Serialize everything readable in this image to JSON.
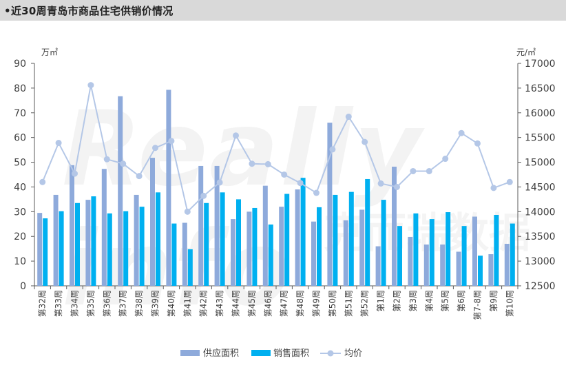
{
  "header": {
    "title": "•近30周青岛市商品住宅供销价情况"
  },
  "watermark": {
    "text": "Really info",
    "text_cn": "克而瑞数据"
  },
  "chart_data": {
    "type": "bar",
    "title": "近30周青岛市商品住宅供销价情况",
    "categories": [
      "第32周",
      "第33周",
      "第34周",
      "第35周",
      "第36周",
      "第37周",
      "第38周",
      "第39周",
      "第40周",
      "第41周",
      "第42周",
      "第43周",
      "第44周",
      "第45周",
      "第46周",
      "第47周",
      "第48周",
      "第49周",
      "第50周",
      "第51周",
      "第52周",
      "第1周",
      "第2周",
      "第3周",
      "第4周",
      "第5周",
      "第6周",
      "第7-8周",
      "第9周",
      "第10周"
    ],
    "y_left": {
      "unit": "万㎡",
      "ylim": [
        0,
        90
      ],
      "ticks": [
        0,
        10,
        20,
        30,
        40,
        50,
        60,
        70,
        80,
        90
      ]
    },
    "y_right": {
      "unit": "元/㎡",
      "ylim": [
        12500,
        17000
      ],
      "ticks": [
        12500,
        13000,
        13500,
        14000,
        14500,
        15000,
        15500,
        16000,
        16500,
        17000
      ]
    },
    "series": [
      {
        "name": "供应面积",
        "type": "bar",
        "axis": "left",
        "color": "#8eaadb",
        "values": [
          29.5,
          36.8,
          48.8,
          34.8,
          47.3,
          76.7,
          36.8,
          51.8,
          79.3,
          25.5,
          48.5,
          48.5,
          27,
          30,
          40.5,
          32,
          39,
          26,
          66,
          26.5,
          30.8,
          16,
          48.2,
          19.8,
          16.7,
          16.7,
          13.8,
          28,
          12.8,
          17
        ]
      },
      {
        "name": "销售面积",
        "type": "bar",
        "axis": "left",
        "color": "#00b0f0",
        "values": [
          27.3,
          30.2,
          33.5,
          36.2,
          29.3,
          30.2,
          32,
          37.8,
          25.2,
          14.8,
          33.5,
          37.8,
          35,
          31.5,
          24.8,
          37.2,
          43.7,
          31.8,
          36.8,
          38,
          43.2,
          34.8,
          24.2,
          29.3,
          27,
          29.8,
          24.2,
          12.2,
          28.7,
          25.2
        ]
      },
      {
        "name": "均价",
        "type": "line",
        "axis": "right",
        "color": "#b4c7e7",
        "values": [
          14600,
          15390,
          14770,
          16560,
          15060,
          14970,
          14720,
          15290,
          15430,
          14000,
          14320,
          14590,
          15540,
          14970,
          14960,
          14750,
          14580,
          14380,
          15260,
          15920,
          15410,
          14570,
          14500,
          14820,
          14820,
          15070,
          15590,
          15380,
          14480,
          14600
        ]
      }
    ],
    "legend": {
      "position": "bottom",
      "labels": [
        "供应面积",
        "销售面积",
        "均价"
      ]
    },
    "grid": false
  }
}
